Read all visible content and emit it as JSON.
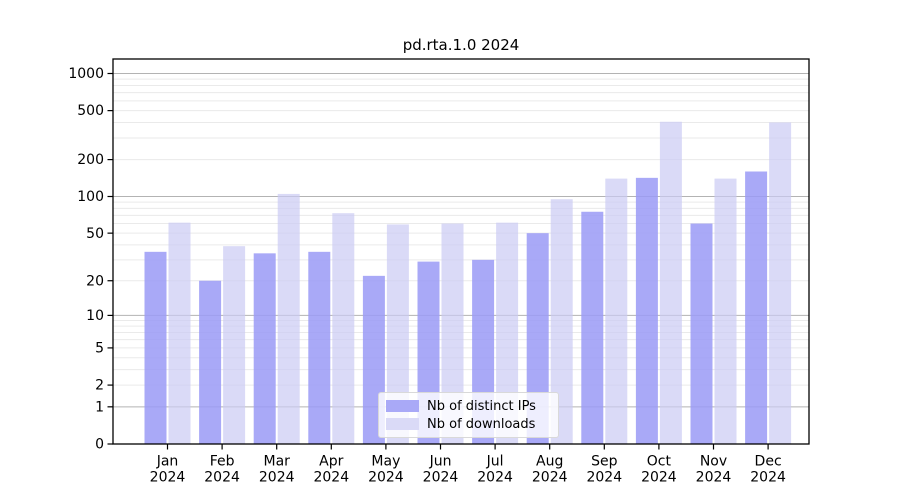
{
  "chart_data": {
    "type": "bar",
    "title": "pd.rta.1.0 2024",
    "categories": [
      "Jan",
      "Feb",
      "Mar",
      "Apr",
      "May",
      "Jun",
      "Jul",
      "Aug",
      "Sep",
      "Oct",
      "Nov",
      "Dec"
    ],
    "year": "2024",
    "series": [
      {
        "name": "Nb of distinct IPs",
        "color": "#a9a9f7",
        "values": [
          35,
          20,
          34,
          35,
          22,
          29,
          30,
          50,
          75,
          142,
          60,
          160
        ]
      },
      {
        "name": "Nb of downloads",
        "color": "#dadaf7",
        "values": [
          61,
          39,
          105,
          73,
          59,
          60,
          61,
          95,
          140,
          406,
          140,
          401
        ]
      }
    ],
    "yscale": "log1p",
    "yticks": [
      0,
      1,
      2,
      5,
      10,
      20,
      50,
      100,
      200,
      500,
      1000
    ],
    "ylim": [
      0,
      1288
    ],
    "xlabel": "",
    "ylabel": "",
    "grid": true,
    "legend_position": "lower center",
    "colors": {
      "major_gridline": "#b3b3b3",
      "minor_gridline": "#eaeaea",
      "axis": "#000000",
      "text": "#000000"
    }
  }
}
